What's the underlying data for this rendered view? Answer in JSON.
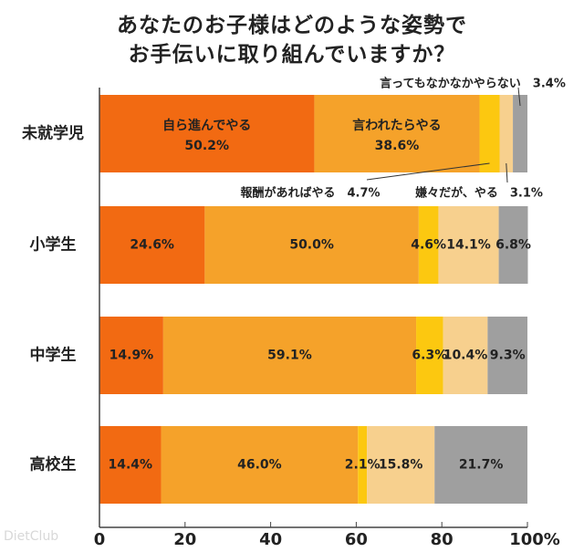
{
  "chart_data": {
    "type": "bar",
    "orientation": "horizontal",
    "stacked": true,
    "title_lines": [
      "あなたのお子様はどのような姿勢で",
      "お手伝いに取り組んでいますか？"
    ],
    "categories": [
      "未就学児",
      "小学生",
      "中学生",
      "高校生"
    ],
    "series": [
      {
        "name": "自ら進んでやる",
        "color": "#f26a12",
        "values": [
          50.2,
          24.6,
          14.9,
          14.4
        ]
      },
      {
        "name": "言われたらやる",
        "color": "#f5a22a",
        "values": [
          38.6,
          50.0,
          59.1,
          46.0
        ]
      },
      {
        "name": "報酬があればやる",
        "color": "#fcc810",
        "values": [
          4.7,
          4.6,
          6.3,
          2.1
        ]
      },
      {
        "name": "嫌々だが、やる",
        "color": "#f7d08e",
        "values": [
          3.1,
          14.1,
          10.4,
          15.8
        ]
      },
      {
        "name": "言ってもなかなかやらない",
        "color": "#9f9f9f",
        "values": [
          3.4,
          6.8,
          9.3,
          21.7
        ]
      }
    ],
    "labels": [
      [
        "50.2%",
        "38.6%",
        "",
        "",
        ""
      ],
      [
        "24.6%",
        "50.0%",
        "4.6%",
        "14.1%",
        "6.8%"
      ],
      [
        "14.9%",
        "59.1%",
        "6.3%",
        "10.4%",
        "9.3%"
      ],
      [
        "14.4%",
        "46.0%",
        "2.1%",
        "15.8%",
        "21.7%"
      ]
    ],
    "callouts": [
      {
        "series": 2,
        "text": "報酬があればやる　4.7%"
      },
      {
        "series": 3,
        "text": "嫌々だが、やる　3.1%"
      },
      {
        "series": 4,
        "text": "言ってもなかなかやらない　3.4%"
      }
    ],
    "xticks": [
      "0",
      "20",
      "40",
      "60",
      "80",
      "100%"
    ],
    "xlim": [
      0,
      100
    ],
    "grid": false,
    "legend": "none"
  },
  "watermark": "DietClub"
}
